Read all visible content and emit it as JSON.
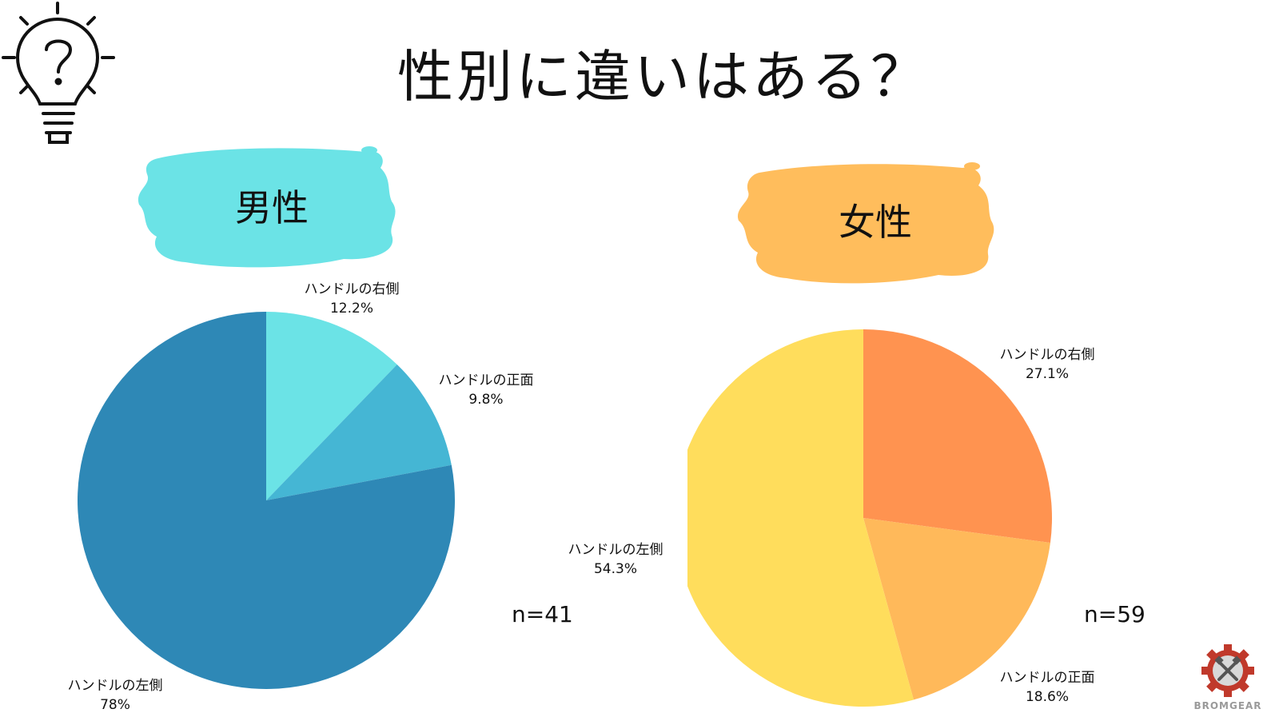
{
  "title": "性別に違いはある？",
  "chart_data": [
    {
      "type": "pie",
      "title": "男性",
      "n_label": "n=41",
      "slices": [
        {
          "label": "ハンドルの右側",
          "value": 12.2,
          "display": "12.2%",
          "color": "#6be3e6"
        },
        {
          "label": "ハンドルの正面",
          "value": 9.8,
          "display": "9.8%",
          "color": "#45b6d4"
        },
        {
          "label": "ハンドルの左側",
          "value": 78,
          "display": "78%",
          "color": "#2e88b6"
        }
      ],
      "blob_color": "#6be3e6"
    },
    {
      "type": "pie",
      "title": "女性",
      "n_label": "n=59",
      "slices": [
        {
          "label": "ハンドルの右側",
          "value": 27.1,
          "display": "27.1%",
          "color": "#ff9350"
        },
        {
          "label": "ハンドルの正面",
          "value": 18.6,
          "display": "18.6%",
          "color": "#ffb95a"
        },
        {
          "label": "ハンドルの左側",
          "value": 54.3,
          "display": "54.3%",
          "color": "#ffdd5c"
        }
      ],
      "blob_color": "#ffbd5c"
    }
  ],
  "logo": {
    "name": "BROMGEAR",
    "icon": "gear-pistons-icon"
  },
  "decor": {
    "icon": "lightbulb-question-icon"
  }
}
